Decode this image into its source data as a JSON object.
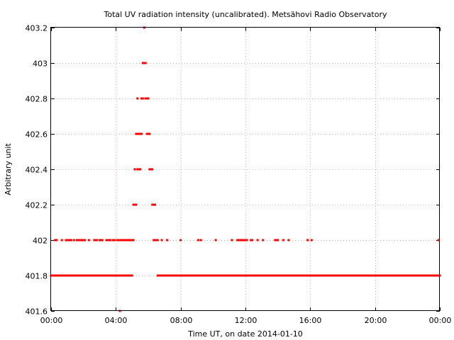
{
  "chart_data": {
    "type": "scatter",
    "title": "Total UV radiation intensity (uncalibrated). Metsähovi Radio Observatory",
    "xlabel": "Time UT, on date 2014-01-10",
    "ylabel": "Arbitrary unit",
    "xlim": [
      "00:00",
      "24:00"
    ],
    "ylim": [
      401.6,
      403.2
    ],
    "xticks": [
      "00:00",
      "04:00",
      "08:00",
      "12:00",
      "16:00",
      "20:00",
      "00:00"
    ],
    "yticks": [
      "401.6",
      "401.8",
      "402",
      "402.2",
      "402.4",
      "402.6",
      "402.8",
      "403",
      "403.2"
    ],
    "grid": true,
    "marker_color": "#ff0000",
    "series": [
      {
        "points_ranges": [
          {
            "y": 401.8,
            "from": "00:00",
            "to": "04:50"
          },
          {
            "y": 401.8,
            "from": "06:35",
            "to": "24:00"
          }
        ],
        "points": [
          [
            "00:15",
            402.0
          ],
          [
            "00:20",
            402.0
          ],
          [
            "00:40",
            402.0
          ],
          [
            "00:55",
            402.0
          ],
          [
            "01:00",
            402.0
          ],
          [
            "01:05",
            402.0
          ],
          [
            "01:10",
            402.0
          ],
          [
            "01:15",
            402.0
          ],
          [
            "01:25",
            402.0
          ],
          [
            "01:35",
            402.0
          ],
          [
            "01:40",
            402.0
          ],
          [
            "01:45",
            402.0
          ],
          [
            "01:50",
            402.0
          ],
          [
            "01:55",
            402.0
          ],
          [
            "02:00",
            402.0
          ],
          [
            "02:05",
            402.0
          ],
          [
            "02:20",
            402.0
          ],
          [
            "02:40",
            402.0
          ],
          [
            "02:45",
            402.0
          ],
          [
            "02:50",
            402.0
          ],
          [
            "03:00",
            402.0
          ],
          [
            "03:05",
            402.0
          ],
          [
            "03:10",
            402.0
          ],
          [
            "03:25",
            402.0
          ],
          [
            "03:30",
            402.0
          ],
          [
            "03:35",
            402.0
          ],
          [
            "03:40",
            402.0
          ],
          [
            "03:50",
            402.0
          ],
          [
            "03:55",
            402.0
          ],
          [
            "04:05",
            402.0
          ],
          [
            "04:10",
            402.0
          ],
          [
            "04:15",
            402.0
          ],
          [
            "04:20",
            402.0
          ],
          [
            "04:25",
            402.0
          ],
          [
            "04:30",
            402.0
          ],
          [
            "04:35",
            402.0
          ],
          [
            "04:40",
            402.0
          ],
          [
            "04:45",
            402.0
          ],
          [
            "04:50",
            402.0
          ],
          [
            "04:55",
            402.0
          ],
          [
            "05:00",
            402.0
          ],
          [
            "05:05",
            402.0
          ],
          [
            "04:15",
            401.6
          ],
          [
            "04:55",
            401.8
          ],
          [
            "05:00",
            401.8
          ],
          [
            "05:05",
            402.2
          ],
          [
            "05:10",
            402.2
          ],
          [
            "05:15",
            402.2
          ],
          [
            "05:10",
            402.4
          ],
          [
            "05:20",
            402.4
          ],
          [
            "05:25",
            402.4
          ],
          [
            "05:30",
            402.4
          ],
          [
            "05:15",
            402.6
          ],
          [
            "05:20",
            402.6
          ],
          [
            "05:25",
            402.6
          ],
          [
            "05:30",
            402.6
          ],
          [
            "05:35",
            402.6
          ],
          [
            "05:20",
            402.8
          ],
          [
            "05:35",
            402.8
          ],
          [
            "05:40",
            402.8
          ],
          [
            "05:40",
            403.0
          ],
          [
            "05:45",
            403.0
          ],
          [
            "05:50",
            403.0
          ],
          [
            "05:45",
            403.2
          ],
          [
            "05:50",
            402.8
          ],
          [
            "05:55",
            402.8
          ],
          [
            "06:00",
            402.8
          ],
          [
            "05:55",
            402.6
          ],
          [
            "06:00",
            402.6
          ],
          [
            "06:05",
            402.6
          ],
          [
            "06:05",
            402.4
          ],
          [
            "06:10",
            402.4
          ],
          [
            "06:15",
            402.4
          ],
          [
            "06:15",
            402.2
          ],
          [
            "06:20",
            402.2
          ],
          [
            "06:25",
            402.2
          ],
          [
            "06:20",
            402.0
          ],
          [
            "06:25",
            402.0
          ],
          [
            "06:30",
            402.0
          ],
          [
            "06:35",
            402.0
          ],
          [
            "06:50",
            402.0
          ],
          [
            "07:10",
            402.0
          ],
          [
            "08:00",
            402.0
          ],
          [
            "09:05",
            402.0
          ],
          [
            "09:15",
            402.0
          ],
          [
            "10:10",
            402.0
          ],
          [
            "11:10",
            402.0
          ],
          [
            "11:30",
            402.0
          ],
          [
            "11:35",
            402.0
          ],
          [
            "11:40",
            402.0
          ],
          [
            "11:45",
            402.0
          ],
          [
            "11:50",
            402.0
          ],
          [
            "11:55",
            402.0
          ],
          [
            "12:00",
            402.0
          ],
          [
            "12:05",
            402.0
          ],
          [
            "12:20",
            402.0
          ],
          [
            "12:25",
            402.0
          ],
          [
            "12:45",
            402.0
          ],
          [
            "13:05",
            402.0
          ],
          [
            "13:50",
            402.0
          ],
          [
            "13:55",
            402.0
          ],
          [
            "14:00",
            402.0
          ],
          [
            "14:20",
            402.0
          ],
          [
            "14:40",
            402.0
          ],
          [
            "15:50",
            402.0
          ],
          [
            "16:05",
            402.0
          ],
          [
            "23:55",
            402.0
          ]
        ]
      }
    ]
  }
}
